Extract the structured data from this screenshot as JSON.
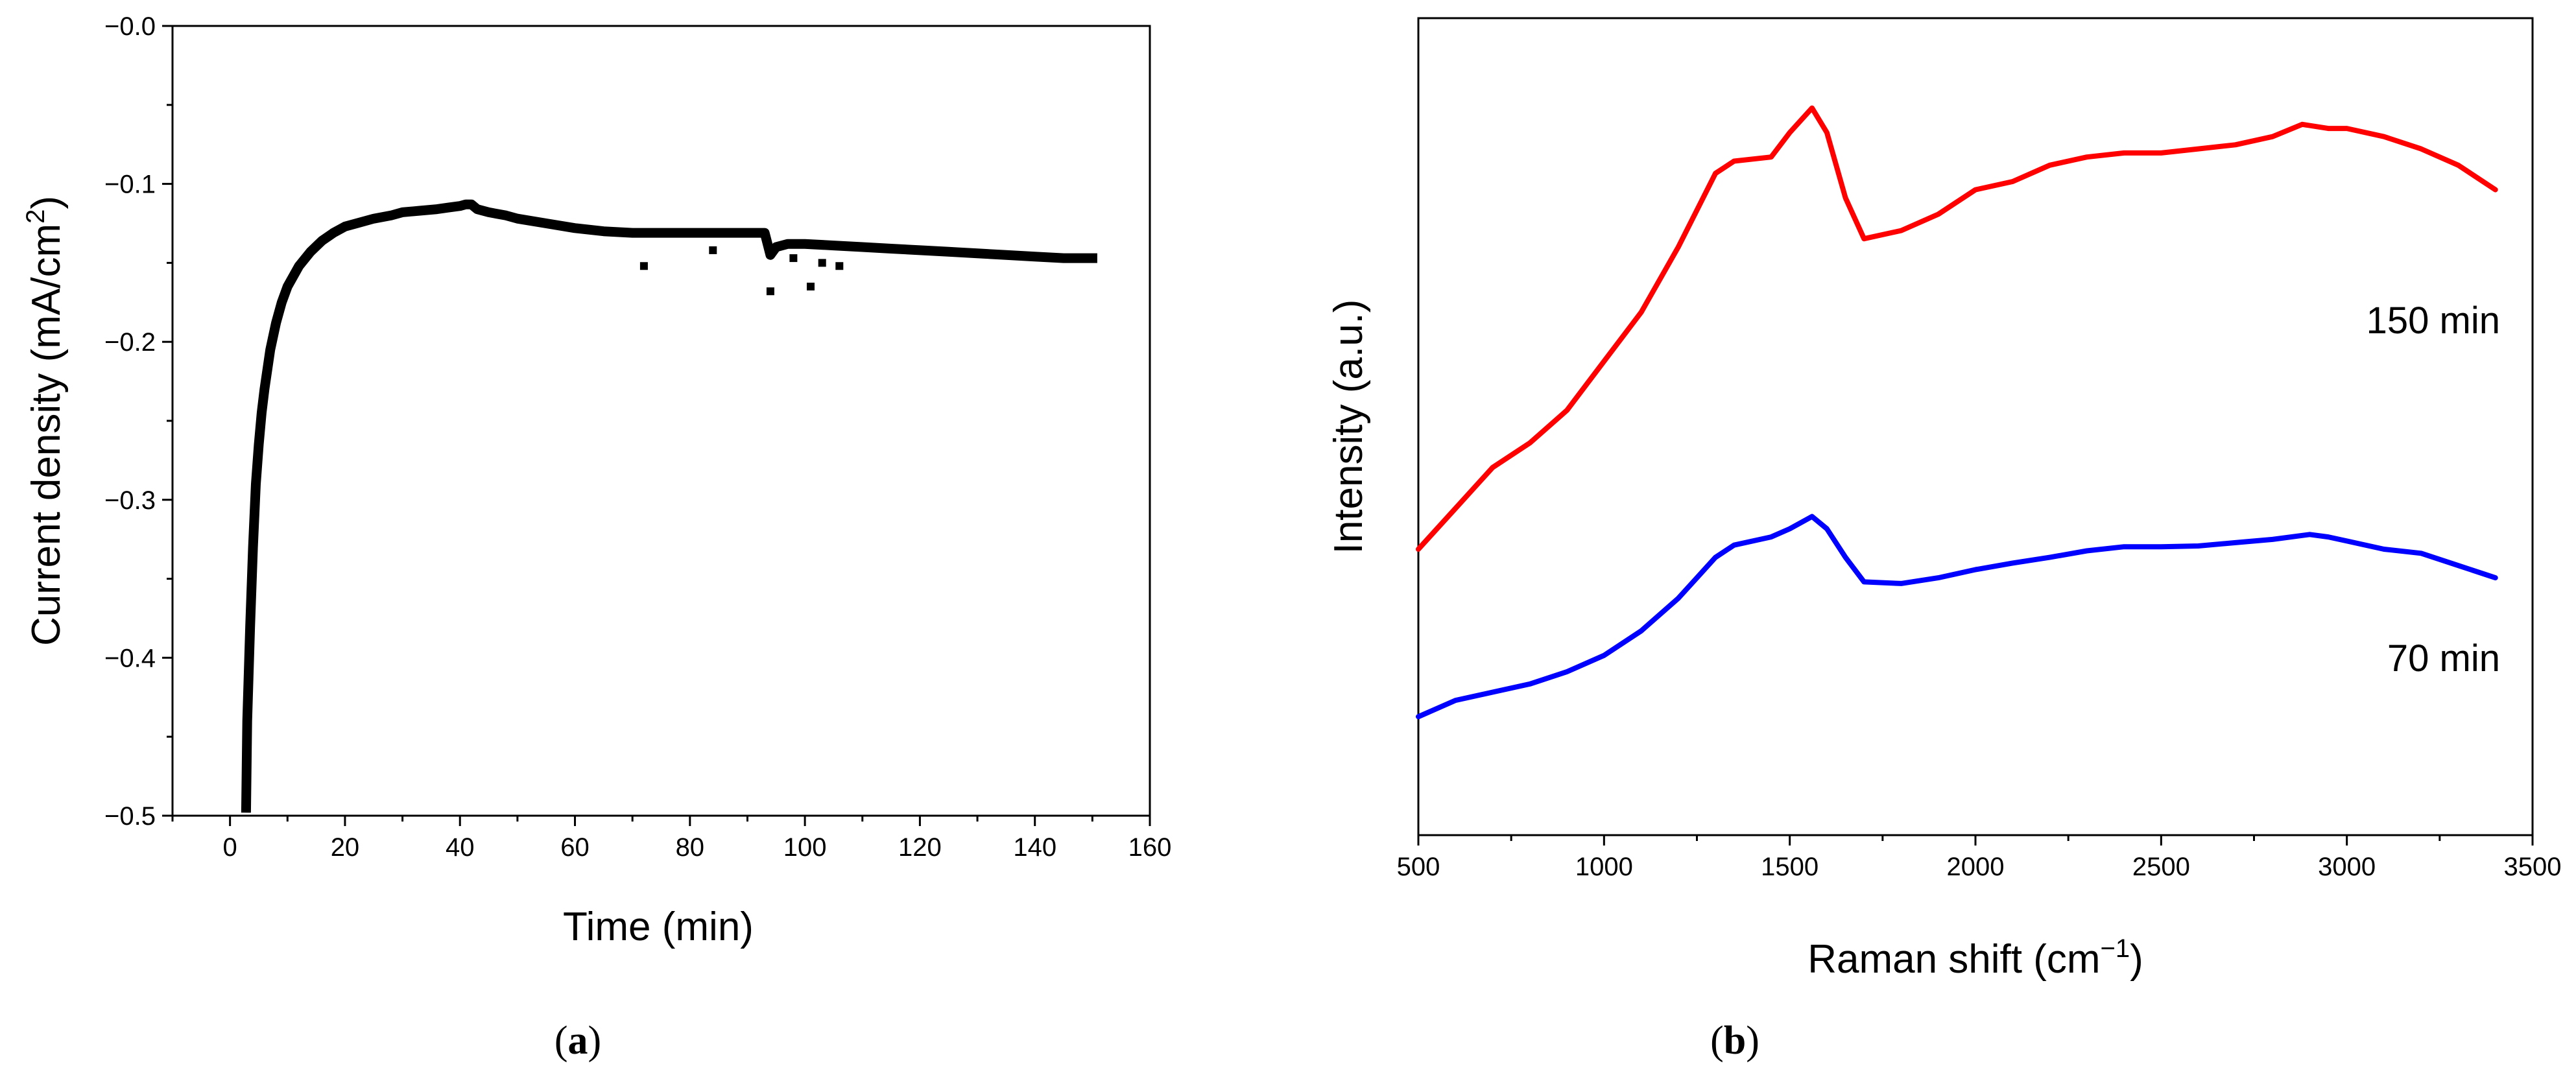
{
  "chart_data": [
    {
      "type": "scatter",
      "panel": "a",
      "title": "",
      "xlabel": "Time (min)",
      "ylabel": "Current density (mA/cm",
      "ylabel_superscript": "2",
      "ylabel_close": ")",
      "xlim": [
        -10,
        160
      ],
      "ylim": [
        -0.5,
        0.0
      ],
      "xticks": [
        0,
        20,
        40,
        60,
        80,
        100,
        120,
        140,
        160
      ],
      "xtick_labels": [
        "0",
        "20",
        "40",
        "60",
        "80",
        "100",
        "120",
        "140",
        "160"
      ],
      "yticks": [
        -0.5,
        -0.4,
        -0.3,
        -0.2,
        -0.1,
        0.0
      ],
      "ytick_labels": [
        "−0.5",
        "−0.4",
        "−0.3",
        "−0.2",
        "−0.1",
        "−0.0"
      ],
      "series": [
        {
          "name": "current density",
          "color": "#000000",
          "x": [
            2.8,
            3,
            3.5,
            4,
            4.5,
            5,
            5.5,
            6,
            7,
            8,
            9,
            10,
            12,
            14,
            16,
            18,
            20,
            22,
            25,
            28,
            30,
            33,
            36,
            38,
            40,
            41,
            42,
            43,
            45,
            48,
            50,
            55,
            60,
            65,
            70,
            75,
            80,
            85,
            90,
            93,
            94,
            95,
            97,
            100,
            105,
            110,
            115,
            120,
            125,
            130,
            135,
            140,
            145,
            150
          ],
          "y": [
            -0.495,
            -0.44,
            -0.38,
            -0.33,
            -0.29,
            -0.265,
            -0.245,
            -0.23,
            -0.205,
            -0.188,
            -0.175,
            -0.165,
            -0.152,
            -0.143,
            -0.136,
            -0.131,
            -0.127,
            -0.125,
            -0.122,
            -0.12,
            -0.118,
            -0.117,
            -0.116,
            -0.115,
            -0.114,
            -0.113,
            -0.113,
            -0.116,
            -0.118,
            -0.12,
            -0.122,
            -0.125,
            -0.128,
            -0.13,
            -0.131,
            -0.131,
            -0.131,
            -0.131,
            -0.131,
            -0.131,
            -0.145,
            -0.14,
            -0.138,
            -0.138,
            -0.139,
            -0.14,
            -0.141,
            -0.142,
            -0.143,
            -0.144,
            -0.145,
            -0.146,
            -0.147,
            -0.147
          ]
        },
        {
          "name": "outliers",
          "color": "#000000",
          "x": [
            72,
            84,
            94,
            98,
            101,
            103,
            106
          ],
          "y": [
            -0.152,
            -0.142,
            -0.168,
            -0.147,
            -0.165,
            -0.15,
            -0.152
          ]
        }
      ]
    },
    {
      "type": "line",
      "panel": "b",
      "title": "",
      "xlabel": "Raman shift (cm",
      "xlabel_superscript": "−1",
      "xlabel_close": ")",
      "ylabel": "Intensity (a.u.)",
      "xlim": [
        500,
        3500
      ],
      "ylim": [
        0,
        100
      ],
      "y_ticks_shown": false,
      "xticks": [
        500,
        1000,
        1500,
        2000,
        2500,
        3000,
        3500
      ],
      "xtick_labels": [
        "500",
        "1000",
        "1500",
        "2000",
        "2500",
        "3000",
        "3500"
      ],
      "series": [
        {
          "name": "150 min",
          "color": "#ff0000",
          "x": [
            500,
            600,
            700,
            800,
            900,
            1000,
            1100,
            1200,
            1300,
            1350,
            1450,
            1500,
            1560,
            1600,
            1650,
            1700,
            1800,
            1900,
            2000,
            2100,
            2200,
            2300,
            2400,
            2500,
            2600,
            2700,
            2800,
            2880,
            2950,
            3000,
            3100,
            3200,
            3300,
            3400
          ],
          "y": [
            35,
            40,
            45,
            48,
            52,
            58,
            64,
            72,
            81,
            82.5,
            83,
            86,
            89,
            86,
            78,
            73,
            74,
            76,
            79,
            80,
            82,
            83,
            83.5,
            83.5,
            84,
            84.5,
            85.5,
            87,
            86.5,
            86.5,
            85.5,
            84,
            82,
            79
          ]
        },
        {
          "name": "70 min",
          "color": "#0000ff",
          "x": [
            500,
            600,
            700,
            800,
            900,
            1000,
            1100,
            1200,
            1300,
            1350,
            1450,
            1500,
            1560,
            1600,
            1650,
            1700,
            1800,
            1900,
            2000,
            2100,
            2200,
            2300,
            2400,
            2500,
            2600,
            2700,
            2800,
            2900,
            2950,
            3000,
            3100,
            3200,
            3300,
            3400
          ],
          "y": [
            14.5,
            16.5,
            17.5,
            18.5,
            20,
            22,
            25,
            29,
            34,
            35.5,
            36.5,
            37.5,
            39,
            37.5,
            34,
            31,
            30.8,
            31.5,
            32.5,
            33.3,
            34,
            34.8,
            35.3,
            35.3,
            35.4,
            35.8,
            36.2,
            36.8,
            36.5,
            36,
            35,
            34.5,
            33,
            31.5
          ]
        }
      ],
      "annotations": [
        "150 min",
        "70 min"
      ]
    }
  ],
  "panel_labels": {
    "a": {
      "open": "(",
      "letter": "a",
      "close": ")"
    },
    "b": {
      "open": "(",
      "letter": "b",
      "close": ")"
    }
  }
}
